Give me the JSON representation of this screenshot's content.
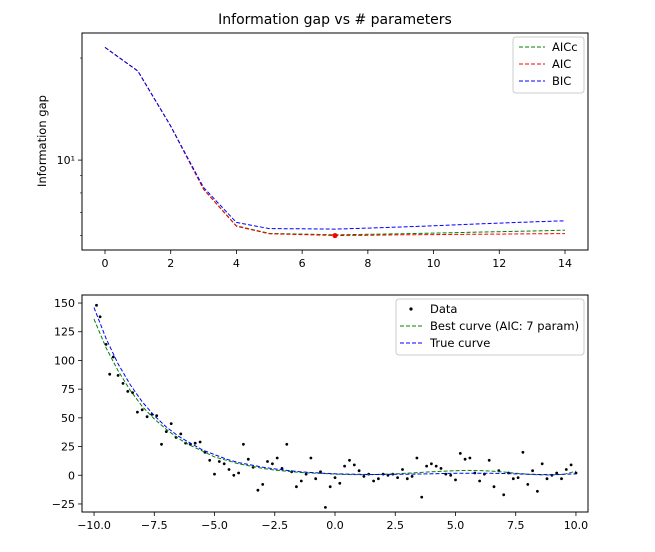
{
  "chart_data": [
    {
      "type": "line",
      "title": "Information gap vs # parameters",
      "xlabel": "",
      "ylabel": "Information gap",
      "xlim": [
        -0.7,
        14.7
      ],
      "ylim": [
        5.43,
        23.71
      ],
      "yscale": "log",
      "xticks": [
        0,
        2,
        4,
        6,
        8,
        10,
        12,
        14
      ],
      "xtick_labels": [
        "0",
        "2",
        "4",
        "6",
        "8",
        "10",
        "12",
        "14"
      ],
      "yticks": [
        10
      ],
      "ytick_labels": [
        "10¹"
      ],
      "legend_position": "upper right",
      "grid": false,
      "x": [
        0,
        1,
        2,
        3,
        4,
        5,
        6,
        7,
        8,
        9,
        10,
        11,
        12,
        13,
        14
      ],
      "series": [
        {
          "name": "AICc",
          "color": "#008000",
          "style": "dashed",
          "values": [
            21.5,
            18.3,
            12.6,
            8.2,
            6.4,
            6.08,
            6.05,
            6.02,
            6.04,
            6.06,
            6.09,
            6.12,
            6.15,
            6.18,
            6.21
          ]
        },
        {
          "name": "AIC",
          "color": "#ff0000",
          "style": "dashed",
          "values": [
            21.5,
            18.3,
            12.6,
            8.2,
            6.38,
            6.06,
            6.03,
            5.99,
            6.0,
            6.02,
            6.03,
            6.04,
            6.05,
            6.06,
            6.07
          ]
        },
        {
          "name": "BIC",
          "color": "#0000ff",
          "style": "dashed",
          "values": [
            21.5,
            18.3,
            12.6,
            8.3,
            6.55,
            6.28,
            6.27,
            6.26,
            6.3,
            6.35,
            6.4,
            6.46,
            6.52,
            6.57,
            6.62
          ]
        }
      ],
      "highlight_point": {
        "x": 7,
        "y": 5.99,
        "color": "#ff0000"
      }
    },
    {
      "type": "scatter",
      "title": "",
      "xlabel": "",
      "ylabel": "",
      "xlim": [
        -10.5,
        10.5
      ],
      "ylim": [
        -32,
        157
      ],
      "xticks": [
        -10.0,
        -7.5,
        -5.0,
        -2.5,
        0.0,
        2.5,
        5.0,
        7.5,
        10.0
      ],
      "xtick_labels": [
        "−10.0",
        "−7.5",
        "−5.0",
        "−2.5",
        "0.0",
        "2.5",
        "5.0",
        "7.5",
        "10.0"
      ],
      "yticks": [
        -25,
        0,
        25,
        50,
        75,
        100,
        125,
        150
      ],
      "ytick_labels": [
        "−25",
        "0",
        "25",
        "50",
        "75",
        "100",
        "125",
        "150"
      ],
      "legend_position": "upper right",
      "grid": false,
      "scatter": {
        "name": "Data",
        "color": "#000000",
        "points": [
          [
            -9.9,
            148
          ],
          [
            -9.75,
            138
          ],
          [
            -9.5,
            114
          ],
          [
            -9.2,
            103
          ],
          [
            -9.35,
            88
          ],
          [
            -9.0,
            87
          ],
          [
            -8.8,
            80
          ],
          [
            -8.6,
            73
          ],
          [
            -8.4,
            72
          ],
          [
            -8.2,
            55
          ],
          [
            -8.0,
            57
          ],
          [
            -7.8,
            51
          ],
          [
            -7.6,
            53
          ],
          [
            -7.4,
            52
          ],
          [
            -7.2,
            27
          ],
          [
            -7.0,
            38
          ],
          [
            -6.8,
            45
          ],
          [
            -6.6,
            33
          ],
          [
            -6.4,
            36
          ],
          [
            -6.2,
            28
          ],
          [
            -6.0,
            27
          ],
          [
            -5.8,
            28
          ],
          [
            -5.6,
            29
          ],
          [
            -5.4,
            20
          ],
          [
            -5.2,
            13
          ],
          [
            -5.0,
            1
          ],
          [
            -4.8,
            12
          ],
          [
            -4.6,
            10
          ],
          [
            -4.4,
            5
          ],
          [
            -4.2,
            0
          ],
          [
            -4.0,
            2
          ],
          [
            -3.8,
            27
          ],
          [
            -3.6,
            14
          ],
          [
            -3.4,
            7
          ],
          [
            -3.2,
            -13
          ],
          [
            -3.0,
            -8
          ],
          [
            -2.8,
            12
          ],
          [
            -2.6,
            10
          ],
          [
            -2.4,
            15
          ],
          [
            -2.2,
            6
          ],
          [
            -2.0,
            27
          ],
          [
            -1.8,
            3
          ],
          [
            -1.6,
            -10
          ],
          [
            -1.4,
            -5
          ],
          [
            -1.2,
            1
          ],
          [
            -1.0,
            15
          ],
          [
            -0.8,
            -3
          ],
          [
            -0.6,
            3
          ],
          [
            -0.4,
            -28
          ],
          [
            -0.2,
            -10
          ],
          [
            0.0,
            -2
          ],
          [
            0.2,
            -7
          ],
          [
            0.4,
            8
          ],
          [
            0.6,
            13
          ],
          [
            0.8,
            9
          ],
          [
            1.0,
            4
          ],
          [
            1.2,
            -1
          ],
          [
            1.4,
            1
          ],
          [
            1.6,
            -5
          ],
          [
            1.8,
            -3
          ],
          [
            2.0,
            1
          ],
          [
            2.2,
            0
          ],
          [
            2.4,
            1
          ],
          [
            2.6,
            -2
          ],
          [
            2.8,
            5
          ],
          [
            3.0,
            -3
          ],
          [
            3.2,
            -1
          ],
          [
            3.4,
            15
          ],
          [
            3.6,
            -19
          ],
          [
            3.8,
            8
          ],
          [
            4.0,
            10
          ],
          [
            4.2,
            8
          ],
          [
            4.4,
            6
          ],
          [
            4.6,
            1
          ],
          [
            4.8,
            0
          ],
          [
            5.0,
            -4
          ],
          [
            5.2,
            19
          ],
          [
            5.4,
            14
          ],
          [
            5.6,
            15
          ],
          [
            5.8,
            2
          ],
          [
            6.0,
            -5
          ],
          [
            6.2,
            1
          ],
          [
            6.4,
            13
          ],
          [
            6.6,
            -10
          ],
          [
            6.8,
            4
          ],
          [
            7.0,
            -17
          ],
          [
            7.2,
            2
          ],
          [
            7.4,
            -3
          ],
          [
            7.6,
            -2
          ],
          [
            7.8,
            20
          ],
          [
            8.0,
            -8
          ],
          [
            8.2,
            4
          ],
          [
            8.4,
            -14
          ],
          [
            8.6,
            10
          ],
          [
            8.8,
            -3
          ],
          [
            9.0,
            0
          ],
          [
            9.2,
            2
          ],
          [
            9.4,
            -3
          ],
          [
            9.6,
            5
          ],
          [
            9.8,
            9
          ],
          [
            10.0,
            2
          ]
        ]
      },
      "series": [
        {
          "name": "Best curve (AIC: 7 param)",
          "color": "#008000",
          "style": "dashed",
          "x": [
            -10,
            -9.5,
            -9,
            -8.5,
            -8,
            -7.5,
            -7,
            -6.5,
            -6,
            -5.5,
            -5,
            -4.5,
            -4,
            -3.5,
            -3,
            -2.5,
            -2,
            -1.5,
            -1,
            -0.5,
            0,
            0.5,
            1,
            1.5,
            2,
            2.5,
            3,
            3.5,
            4,
            4.5,
            5,
            5.5,
            6,
            6.5,
            7,
            7.5,
            8,
            8.5,
            9,
            9.5,
            10
          ],
          "values": [
            136,
            111,
            91,
            74,
            60,
            49,
            40,
            32,
            26,
            21,
            16,
            13,
            10,
            8,
            6,
            4.5,
            3.5,
            2.5,
            2,
            1.5,
            1,
            0.7,
            0.5,
            0.6,
            0.8,
            1.2,
            1.8,
            2.4,
            3,
            3.5,
            4,
            4.2,
            4.1,
            3.6,
            2.8,
            1.8,
            0.9,
            0.3,
            0.2,
            0.8,
            3.5
          ]
        },
        {
          "name": "True curve",
          "color": "#0000ff",
          "style": "dashed",
          "x": [
            -10,
            -9.5,
            -9,
            -8.5,
            -8,
            -7.5,
            -7,
            -6.5,
            -6,
            -5.5,
            -5,
            -4.5,
            -4,
            -3.5,
            -3,
            -2.5,
            -2,
            -1.5,
            -1,
            -0.5,
            0,
            0.5,
            1,
            1.5,
            2,
            2.5,
            3,
            3.5,
            4,
            4.5,
            5,
            5.5,
            6,
            6.5,
            7,
            7.5,
            8,
            8.5,
            9,
            9.5,
            10
          ],
          "values": [
            146,
            119,
            97,
            79,
            64,
            52,
            42,
            34,
            28,
            22,
            18,
            14,
            11,
            9,
            7,
            5.5,
            4.2,
            3.2,
            2.4,
            1.8,
            1.3,
            1,
            0.8,
            0.7,
            0.7,
            0.8,
            0.9,
            1.1,
            1.3,
            1.5,
            1.7,
            1.8,
            1.8,
            1.7,
            1.5,
            1.2,
            0.9,
            0.7,
            0.6,
            0.8,
            1.2
          ]
        }
      ]
    }
  ]
}
